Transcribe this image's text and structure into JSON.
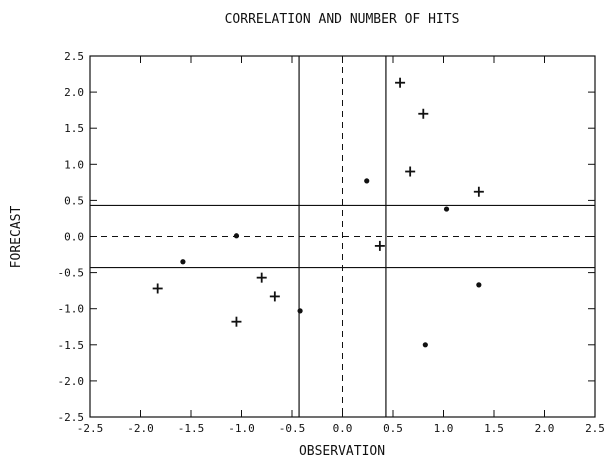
{
  "chart_data": {
    "type": "scatter",
    "title": "CORRELATION AND NUMBER OF HITS",
    "xlabel": "OBSERVATION",
    "ylabel": "FORECAST",
    "xlim": [
      -2.5,
      2.5
    ],
    "ylim": [
      -2.5,
      2.5
    ],
    "xticks": [
      "-2.5",
      "-2.0",
      "-1.5",
      "-1.0",
      "-0.5",
      "0.0",
      "0.5",
      "1.0",
      "1.5",
      "2.0",
      "2.5"
    ],
    "yticks": [
      "2.5",
      "2.0",
      "1.5",
      "1.0",
      "0.5",
      "0.0",
      "-0.5",
      "-1.0",
      "-1.5",
      "-2.0",
      "-2.5"
    ],
    "grid": false,
    "reference_lines": {
      "solid_vertical_x": [
        -0.43,
        0.43
      ],
      "solid_horizontal_y": [
        0.43,
        -0.43
      ],
      "dashed_vertical_x": [
        0.0
      ],
      "dashed_horizontal_y": [
        0.0
      ]
    },
    "series": [
      {
        "marker": "plus",
        "points": [
          {
            "x": 0.57,
            "y": 2.13
          },
          {
            "x": 0.8,
            "y": 1.7
          },
          {
            "x": 0.67,
            "y": 0.9
          },
          {
            "x": 1.35,
            "y": 0.62
          },
          {
            "x": 0.37,
            "y": -0.13
          },
          {
            "x": -0.8,
            "y": -0.57
          },
          {
            "x": -0.67,
            "y": -0.83
          },
          {
            "x": -1.83,
            "y": -0.72
          },
          {
            "x": -1.05,
            "y": -1.18
          }
        ]
      },
      {
        "marker": "dot",
        "points": [
          {
            "x": 0.24,
            "y": 0.77
          },
          {
            "x": 1.03,
            "y": 0.38
          },
          {
            "x": -1.05,
            "y": 0.01
          },
          {
            "x": -1.58,
            "y": -0.35
          },
          {
            "x": -0.42,
            "y": -1.03
          },
          {
            "x": 1.35,
            "y": -0.67
          },
          {
            "x": 0.82,
            "y": -1.5
          }
        ]
      }
    ]
  }
}
